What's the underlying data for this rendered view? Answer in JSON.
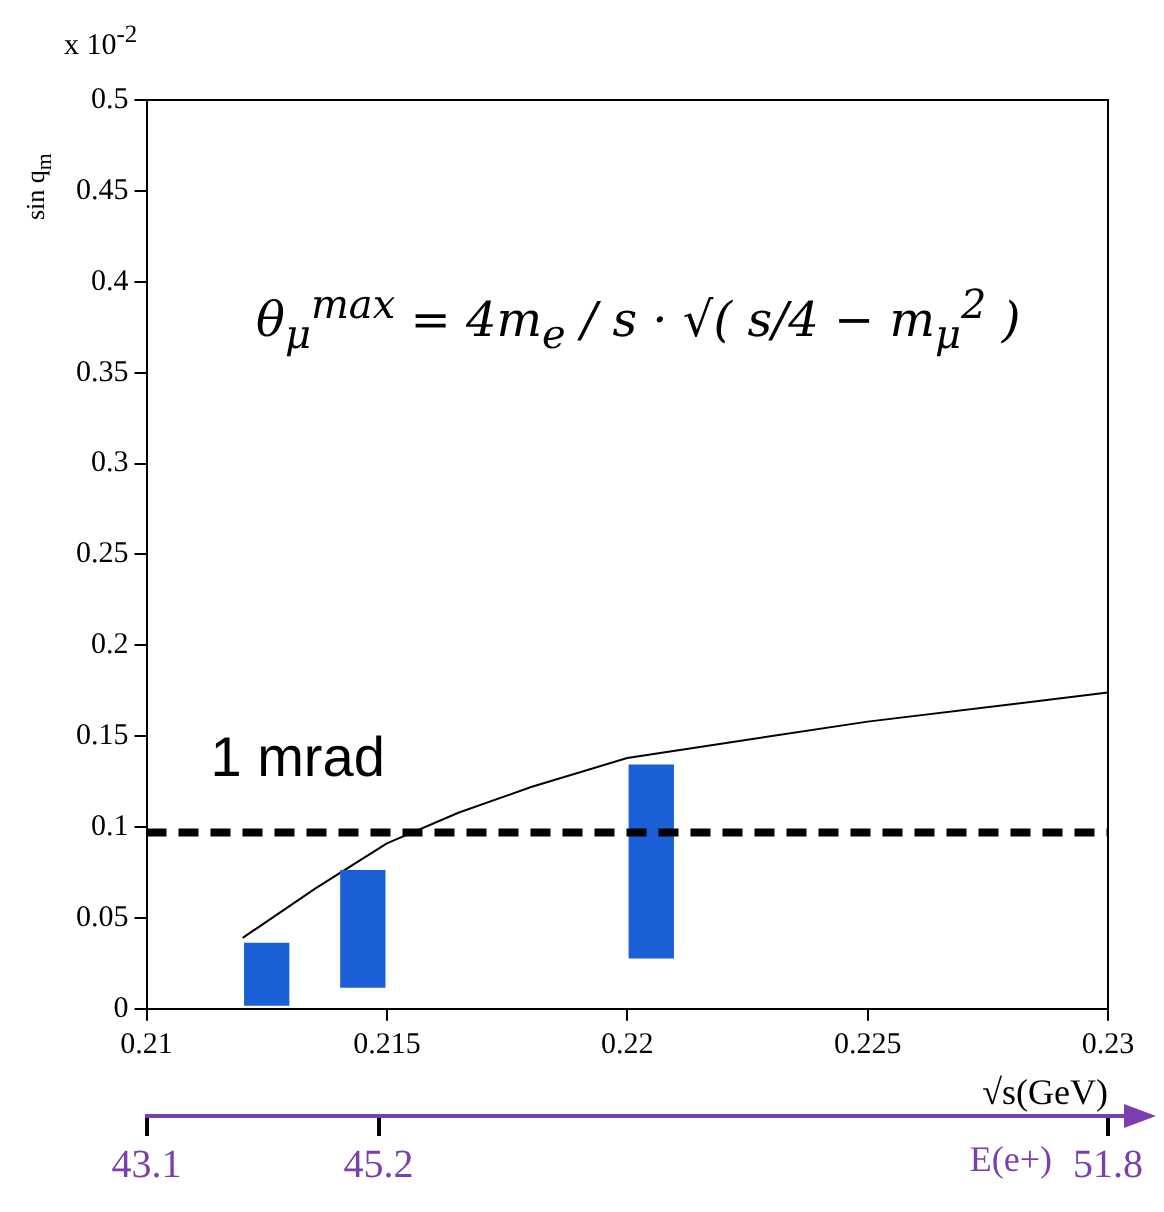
{
  "chart_data": {
    "type": "bar",
    "xlabel": "√s(GeV)",
    "ylabel": "sin q$_{m}$",
    "x2label": "E(e+)",
    "annotations": [
      "x 10$^{-2}$",
      "θ$_{μ}$$^{max}$ = 4m$_{e}$ / s · √( s/4 − m$_{μ}$$^{2}$ )"
    ],
    "x": [
      0.2125,
      0.2145,
      0.2205
    ],
    "series": [
      {
        "color": "#1a5fd6",
        "base": [
          0.002,
          0.012,
          0.028
        ],
        "values": [
          0.034,
          0.064,
          0.106
        ]
      },
      {
        "type": "line",
        "color": "#000000",
        "x": [
          0.212,
          0.2135,
          0.215,
          0.2165,
          0.218,
          0.22,
          0.225,
          0.23
        ],
        "values": [
          0.039,
          0.066,
          0.091,
          0.108,
          0.122,
          0.138,
          0.158,
          0.174
        ]
      }
    ],
    "xlim": [
      0.21,
      0.23
    ],
    "xticks": [
      0.21,
      0.215,
      0.22,
      0.225,
      0.23
    ],
    "ylim": [
      0,
      0.5
    ],
    "yticks": [
      0,
      0.05,
      0.1,
      0.15,
      0.2,
      0.25,
      0.3,
      0.35,
      0.4,
      0.45,
      0.5
    ],
    "x2lim": [
      43.1,
      51.8
    ],
    "x2ticks": [
      43.1,
      45.2,
      51.8
    ],
    "ref_lines": [
      {
        "axis": "y",
        "value": 0.097,
        "label": "1 mrad",
        "color": "#000000",
        "line_style": "dashed"
      }
    ],
    "grid": false,
    "legend": false,
    "marker": "none",
    "line_style": "solid"
  }
}
